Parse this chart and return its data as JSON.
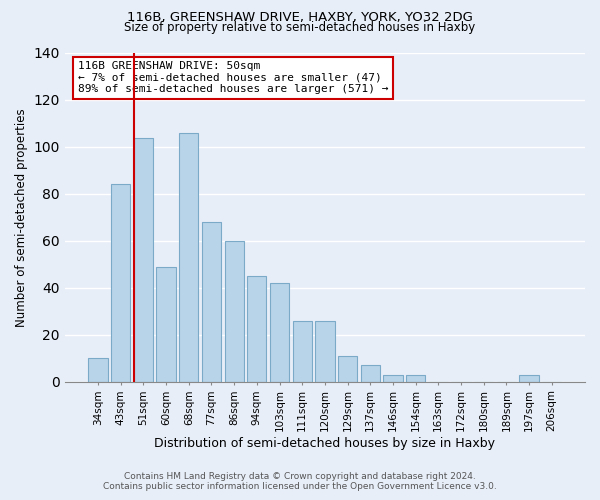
{
  "title": "116B, GREENSHAW DRIVE, HAXBY, YORK, YO32 2DG",
  "subtitle": "Size of property relative to semi-detached houses in Haxby",
  "xlabel": "Distribution of semi-detached houses by size in Haxby",
  "ylabel": "Number of semi-detached properties",
  "categories": [
    "34sqm",
    "43sqm",
    "51sqm",
    "60sqm",
    "68sqm",
    "77sqm",
    "86sqm",
    "94sqm",
    "103sqm",
    "111sqm",
    "120sqm",
    "129sqm",
    "137sqm",
    "146sqm",
    "154sqm",
    "163sqm",
    "172sqm",
    "180sqm",
    "189sqm",
    "197sqm",
    "206sqm"
  ],
  "values": [
    10,
    84,
    104,
    49,
    106,
    68,
    60,
    45,
    42,
    26,
    26,
    11,
    7,
    3,
    3,
    0,
    0,
    0,
    0,
    3,
    0
  ],
  "bar_color": "#b8d4e8",
  "bar_edge_color": "#7aaac8",
  "vline_color": "#cc0000",
  "annotation_title": "116B GREENSHAW DRIVE: 50sqm",
  "annotation_line1": "← 7% of semi-detached houses are smaller (47)",
  "annotation_line2": "89% of semi-detached houses are larger (571) →",
  "annotation_box_color": "#ffffff",
  "annotation_box_edge": "#cc0000",
  "ylim": [
    0,
    140
  ],
  "yticks": [
    0,
    20,
    40,
    60,
    80,
    100,
    120,
    140
  ],
  "footer_line1": "Contains HM Land Registry data © Crown copyright and database right 2024.",
  "footer_line2": "Contains public sector information licensed under the Open Government Licence v3.0.",
  "background_color": "#e8eef8"
}
